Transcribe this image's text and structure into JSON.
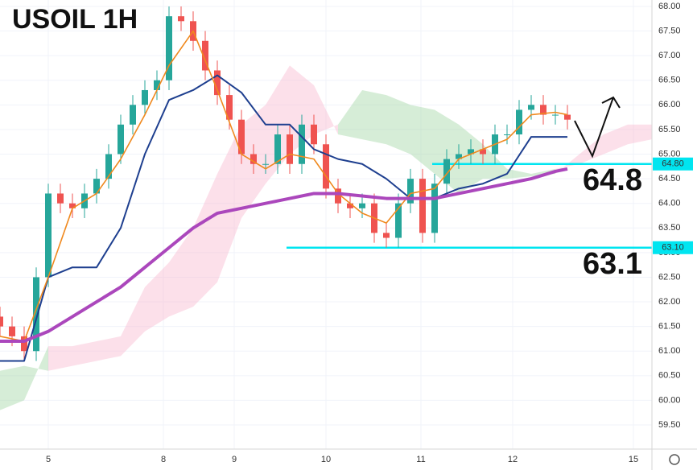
{
  "chart_data": {
    "type": "candlestick",
    "title": "USOIL 1H",
    "xlim": [
      0,
      162
    ],
    "ylim": [
      59.01,
      68.13
    ],
    "xticks": [
      {
        "value": 12,
        "label": "5"
      },
      {
        "value": 40.6,
        "label": "8"
      },
      {
        "value": 58.2,
        "label": "9"
      },
      {
        "value": 81,
        "label": "10"
      },
      {
        "value": 104.6,
        "label": "11"
      },
      {
        "value": 127.4,
        "label": "12"
      },
      {
        "value": 157.4,
        "label": "15"
      }
    ],
    "yticks": [
      {
        "value": 68,
        "label": "68.00"
      },
      {
        "value": 67.5,
        "label": "67.50"
      },
      {
        "value": 67,
        "label": "67.00"
      },
      {
        "value": 66.5,
        "label": "66.50"
      },
      {
        "value": 66,
        "label": "66.00"
      },
      {
        "value": 65.5,
        "label": "65.50"
      },
      {
        "value": 65,
        "label": "65.00"
      },
      {
        "value": 64.5,
        "label": "64.50"
      },
      {
        "value": 64,
        "label": "64.00"
      },
      {
        "value": 63.5,
        "label": "63.50"
      },
      {
        "value": 63,
        "label": "63.00"
      },
      {
        "value": 62.5,
        "label": "62.50"
      },
      {
        "value": 62,
        "label": "62.00"
      },
      {
        "value": 61.5,
        "label": "61.50"
      },
      {
        "value": 61,
        "label": "61.00"
      },
      {
        "value": 60.5,
        "label": "60.50"
      },
      {
        "value": 60,
        "label": "60.00"
      },
      {
        "value": 59.5,
        "label": "59.50"
      }
    ],
    "grid": true,
    "up_color": "#26a69a",
    "down_color": "#ef5350",
    "x": [
      0,
      3,
      6,
      9,
      12,
      15,
      18,
      21,
      24,
      27,
      30,
      33,
      36,
      39,
      42,
      45,
      48,
      51,
      54,
      57,
      60,
      63,
      66,
      69,
      72,
      75,
      78,
      81,
      84,
      87,
      90,
      93,
      96,
      99,
      102,
      105,
      108,
      111,
      114,
      117,
      120,
      123,
      126,
      129,
      132,
      135,
      138,
      141
    ],
    "open": [
      61.7,
      61.5,
      61.3,
      61.0,
      62.5,
      64.2,
      64.0,
      63.9,
      64.2,
      64.5,
      65.0,
      65.6,
      66.0,
      66.3,
      66.5,
      67.8,
      67.7,
      67.3,
      66.7,
      66.2,
      65.7,
      65.0,
      64.8,
      64.8,
      65.4,
      64.8,
      65.6,
      65.2,
      64.3,
      64.0,
      63.9,
      64.0,
      63.4,
      63.3,
      64.0,
      64.5,
      63.4,
      64.4,
      64.9,
      65.0,
      65.1,
      65.0,
      65.4,
      65.4,
      65.9,
      66.0,
      65.8,
      65.8
    ],
    "high": [
      61.9,
      61.7,
      61.5,
      62.7,
      64.4,
      64.4,
      64.2,
      64.4,
      64.7,
      65.2,
      65.8,
      66.2,
      66.5,
      66.7,
      68.0,
      68.0,
      67.9,
      67.5,
      66.9,
      66.4,
      65.9,
      65.2,
      65.0,
      65.6,
      65.6,
      65.8,
      65.8,
      65.4,
      64.5,
      64.2,
      64.2,
      64.2,
      63.6,
      64.2,
      64.7,
      64.7,
      64.6,
      65.1,
      65.2,
      65.3,
      65.3,
      65.6,
      65.6,
      66.1,
      66.2,
      66.2,
      66.0,
      66.0
    ],
    "low": [
      61.3,
      61.1,
      60.8,
      60.8,
      62.3,
      63.8,
      63.7,
      63.7,
      64.0,
      64.3,
      64.8,
      65.4,
      65.8,
      66.1,
      66.3,
      67.5,
      67.1,
      66.5,
      66.0,
      65.5,
      64.8,
      64.6,
      64.6,
      64.6,
      64.6,
      64.6,
      65.0,
      64.1,
      63.8,
      63.7,
      63.7,
      63.2,
      63.1,
      63.1,
      63.8,
      63.2,
      63.2,
      64.2,
      64.7,
      64.8,
      64.8,
      64.8,
      65.2,
      65.2,
      65.7,
      65.6,
      65.6,
      65.5
    ],
    "close": [
      61.5,
      61.3,
      61.0,
      62.5,
      64.2,
      64.0,
      63.9,
      64.2,
      64.5,
      65.0,
      65.6,
      66.0,
      66.3,
      66.5,
      67.8,
      67.7,
      67.3,
      66.7,
      66.2,
      65.7,
      65.0,
      64.8,
      64.8,
      65.4,
      64.8,
      65.6,
      65.2,
      64.3,
      64.0,
      63.9,
      64.0,
      63.4,
      63.3,
      64.0,
      64.5,
      63.4,
      64.4,
      64.9,
      65.0,
      65.1,
      65.0,
      65.4,
      65.4,
      65.9,
      66.0,
      65.8,
      65.8,
      65.7
    ],
    "cloud": {
      "x": [
        0,
        6,
        12,
        18,
        24,
        30,
        36,
        42,
        48,
        54,
        60,
        66,
        72,
        78,
        84,
        90,
        96,
        102,
        108,
        114,
        120,
        126,
        132,
        138,
        144,
        150,
        156,
        162
      ],
      "span_a": [
        60.6,
        60.7,
        60.6,
        60.7,
        60.8,
        60.9,
        61.4,
        61.7,
        61.9,
        62.4,
        63.7,
        64.4,
        65.0,
        65.4,
        65.6,
        66.3,
        66.2,
        66.0,
        65.9,
        65.6,
        65.2,
        64.7,
        64.6,
        64.7,
        64.8,
        65.0,
        65.2,
        65.3
      ],
      "span_b": [
        59.8,
        60.0,
        61.1,
        61.1,
        61.2,
        61.3,
        62.3,
        62.8,
        63.5,
        64.6,
        65.6,
        66.0,
        66.8,
        66.4,
        65.4,
        65.3,
        65.2,
        65.0,
        64.6,
        64.2,
        64.5,
        64.5,
        64.55,
        64.6,
        65.0,
        65.4,
        65.6,
        65.6
      ],
      "up_color": "#a5d6a7",
      "down_color": "#f8bbd0"
    },
    "line_x": [
      0,
      6,
      12,
      18,
      24,
      30,
      36,
      42,
      48,
      54,
      60,
      66,
      72,
      78,
      84,
      90,
      96,
      102,
      108,
      114,
      120,
      126,
      132,
      138,
      141
    ],
    "lines": [
      {
        "color": "#1e3f8f",
        "width": 2,
        "values": [
          60.8,
          60.8,
          62.5,
          62.7,
          62.7,
          63.5,
          65.0,
          66.1,
          66.3,
          66.6,
          66.25,
          65.6,
          65.6,
          65.1,
          64.9,
          64.8,
          64.5,
          64.1,
          64.1,
          64.3,
          64.4,
          64.6,
          65.35,
          65.35,
          65.35
        ]
      },
      {
        "color": "#f0891e",
        "width": 1.6,
        "values": [
          61.3,
          61.2,
          62.5,
          63.9,
          64.2,
          64.9,
          65.8,
          66.8,
          67.5,
          66.3,
          65.0,
          64.7,
          65.0,
          64.9,
          64.2,
          63.8,
          63.6,
          64.2,
          64.3,
          64.9,
          65.1,
          65.3,
          65.8,
          65.85,
          65.8
        ]
      },
      {
        "color": "#ab47bc",
        "width": 4,
        "values": [
          61.2,
          61.2,
          61.4,
          61.7,
          62.0,
          62.3,
          62.7,
          63.1,
          63.5,
          63.8,
          63.9,
          64.0,
          64.1,
          64.2,
          64.2,
          64.15,
          64.1,
          64.1,
          64.1,
          64.2,
          64.3,
          64.4,
          64.5,
          64.65,
          64.7
        ]
      }
    ],
    "level_color": "#00e5f0",
    "levels": [
      {
        "value": 64.8,
        "label": "64.80",
        "x_start": 107.4,
        "annotation": "64.8"
      },
      {
        "value": 63.1,
        "label": "63.10",
        "x_start": 71.2,
        "annotation": "63.1"
      }
    ]
  }
}
